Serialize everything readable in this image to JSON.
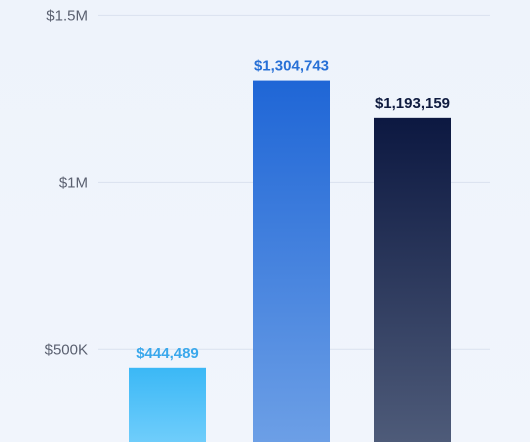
{
  "chart_data": {
    "type": "bar",
    "title": "",
    "xlabel": "",
    "ylabel": "",
    "ylim": [
      0,
      1500000
    ],
    "grid": true,
    "yticks": [
      {
        "value": 500000,
        "label": "$500K"
      },
      {
        "value": 1000000,
        "label": "$1M"
      },
      {
        "value": 1500000,
        "label": "$1.5M"
      }
    ],
    "bars": [
      {
        "value": 444489,
        "label": "$444,489",
        "color_top": "#3bb8f6",
        "color_bottom": "#6fcdfb",
        "label_color": "#3aa8ec"
      },
      {
        "value": 1304743,
        "label": "$1,304,743",
        "color_top": "#1f66d6",
        "color_bottom": "#6c9fe6",
        "label_color": "#2770d6"
      },
      {
        "value": 1193159,
        "label": "$1,193,159",
        "color_top": "#0c1841",
        "color_bottom": "#4e5b79",
        "label_color": "#0f1b3f"
      }
    ]
  }
}
